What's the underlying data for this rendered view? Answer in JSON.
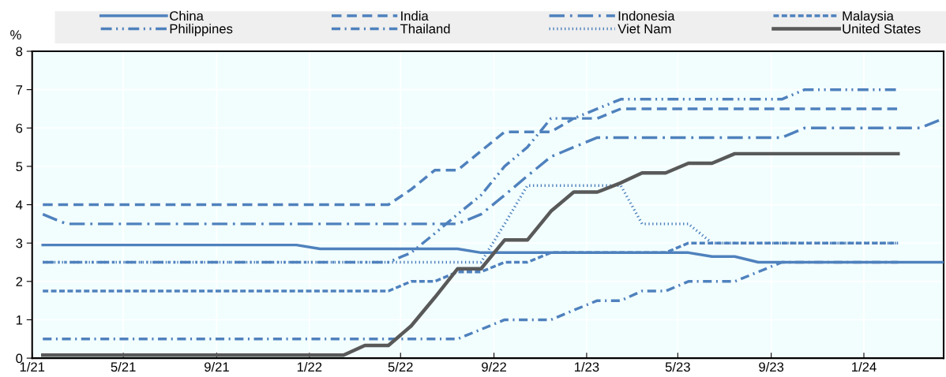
{
  "chart_data": {
    "type": "line",
    "ylabel": "%",
    "x": [
      "2021-01-15",
      "2021-02-15",
      "2021-03-15",
      "2021-04-15",
      "2021-05-15",
      "2021-06-15",
      "2021-07-15",
      "2021-08-15",
      "2021-09-15",
      "2021-10-15",
      "2021-11-15",
      "2021-12-15",
      "2022-01-15",
      "2022-02-15",
      "2022-03-15",
      "2022-04-15",
      "2022-05-15",
      "2022-06-15",
      "2022-07-15",
      "2022-08-15",
      "2022-09-15",
      "2022-10-15",
      "2022-11-15",
      "2022-12-15",
      "2023-01-15",
      "2023-02-15",
      "2023-03-15",
      "2023-04-15",
      "2023-05-15",
      "2023-06-15",
      "2023-07-15",
      "2023-08-15",
      "2023-09-15",
      "2023-10-15",
      "2023-11-15",
      "2023-12-15",
      "2024-01-15",
      "2024-02-15",
      "2024-03-15",
      "2024-04-15"
    ],
    "series": [
      {
        "name": "China",
        "color": "#4f81bd",
        "line_style": "solid",
        "values": [
          2.95,
          2.95,
          2.95,
          2.95,
          2.95,
          2.95,
          2.95,
          2.95,
          2.95,
          2.95,
          2.95,
          2.95,
          2.85,
          2.85,
          2.85,
          2.85,
          2.85,
          2.85,
          2.85,
          2.75,
          2.75,
          2.75,
          2.75,
          2.75,
          2.75,
          2.75,
          2.75,
          2.75,
          2.75,
          2.65,
          2.65,
          2.5,
          2.5,
          2.5,
          2.5,
          2.5,
          2.5,
          2.5,
          2.5,
          2.5
        ]
      },
      {
        "name": "India",
        "color": "#4f81bd",
        "line_style": "dashed",
        "values": [
          4.0,
          4.0,
          4.0,
          4.0,
          4.0,
          4.0,
          4.0,
          4.0,
          4.0,
          4.0,
          4.0,
          4.0,
          4.0,
          4.0,
          4.0,
          4.0,
          4.4,
          4.9,
          4.9,
          5.4,
          5.9,
          5.9,
          5.9,
          6.25,
          6.25,
          6.5,
          6.5,
          6.5,
          6.5,
          6.5,
          6.5,
          6.5,
          6.5,
          6.5,
          6.5,
          6.5,
          6.5,
          6.5,
          null,
          null
        ]
      },
      {
        "name": "Indonesia",
        "color": "#4f81bd",
        "line_style": "longdashdot",
        "values": [
          3.75,
          3.5,
          3.5,
          3.5,
          3.5,
          3.5,
          3.5,
          3.5,
          3.5,
          3.5,
          3.5,
          3.5,
          3.5,
          3.5,
          3.5,
          3.5,
          3.5,
          3.5,
          3.5,
          3.75,
          4.25,
          4.75,
          5.25,
          5.5,
          5.75,
          5.75,
          5.75,
          5.75,
          5.75,
          5.75,
          5.75,
          5.75,
          5.75,
          6.0,
          6.0,
          6.0,
          6.0,
          6.0,
          6.0,
          6.25
        ]
      },
      {
        "name": "Malaysia",
        "color": "#4f81bd",
        "line_style": "shortdashed",
        "values": [
          1.75,
          1.75,
          1.75,
          1.75,
          1.75,
          1.75,
          1.75,
          1.75,
          1.75,
          1.75,
          1.75,
          1.75,
          1.75,
          1.75,
          1.75,
          1.75,
          2.0,
          2.0,
          2.25,
          2.25,
          2.5,
          2.5,
          2.75,
          2.75,
          2.75,
          2.75,
          2.75,
          2.75,
          3.0,
          3.0,
          3.0,
          3.0,
          3.0,
          3.0,
          3.0,
          3.0,
          3.0,
          3.0,
          null,
          null
        ]
      },
      {
        "name": "Philippines",
        "color": "#4f81bd",
        "line_style": "dashdotdot",
        "values": [
          2.5,
          2.5,
          2.5,
          2.5,
          2.5,
          2.5,
          2.5,
          2.5,
          2.5,
          2.5,
          2.5,
          2.5,
          2.5,
          2.5,
          2.5,
          2.5,
          2.75,
          3.25,
          3.75,
          4.25,
          5.0,
          5.5,
          6.25,
          6.25,
          6.5,
          6.75,
          6.75,
          6.75,
          6.75,
          6.75,
          6.75,
          6.75,
          6.75,
          7.0,
          7.0,
          7.0,
          7.0,
          7.0,
          null,
          null
        ]
      },
      {
        "name": "Thailand",
        "color": "#4f81bd",
        "line_style": "dashdot",
        "values": [
          0.5,
          0.5,
          0.5,
          0.5,
          0.5,
          0.5,
          0.5,
          0.5,
          0.5,
          0.5,
          0.5,
          0.5,
          0.5,
          0.5,
          0.5,
          0.5,
          0.5,
          0.5,
          0.5,
          0.75,
          1.0,
          1.0,
          1.0,
          1.25,
          1.5,
          1.5,
          1.75,
          1.75,
          2.0,
          2.0,
          2.0,
          2.25,
          2.5,
          2.5,
          2.5,
          2.5,
          2.5,
          2.5,
          null,
          null
        ]
      },
      {
        "name": "Viet Nam",
        "color": "#4f81bd",
        "line_style": "dotted",
        "values": [
          2.5,
          2.5,
          2.5,
          2.5,
          2.5,
          2.5,
          2.5,
          2.5,
          2.5,
          2.5,
          2.5,
          2.5,
          2.5,
          2.5,
          2.5,
          2.5,
          2.5,
          2.5,
          2.5,
          2.5,
          3.5,
          4.5,
          4.5,
          4.5,
          4.5,
          4.5,
          3.5,
          3.5,
          3.5,
          3.0,
          3.0,
          3.0,
          3.0,
          3.0,
          3.0,
          3.0,
          3.0,
          3.0,
          null,
          null
        ]
      },
      {
        "name": "United States",
        "color": "#595959",
        "line_style": "solid",
        "values": [
          0.08,
          0.08,
          0.08,
          0.08,
          0.08,
          0.08,
          0.08,
          0.08,
          0.08,
          0.08,
          0.08,
          0.08,
          0.08,
          0.08,
          0.33,
          0.33,
          0.84,
          1.58,
          2.33,
          2.33,
          3.08,
          3.08,
          3.83,
          4.33,
          4.33,
          4.57,
          4.83,
          4.83,
          5.08,
          5.08,
          5.33,
          5.33,
          5.33,
          5.33,
          5.33,
          5.33,
          5.33,
          5.33,
          null,
          null
        ]
      }
    ],
    "xlim": [
      "2021-01-01",
      "2024-04-15"
    ],
    "xticks": [
      {
        "value": "2021-01-01",
        "label": "1/21"
      },
      {
        "value": "2021-05-01",
        "label": "5/21"
      },
      {
        "value": "2021-09-01",
        "label": "9/21"
      },
      {
        "value": "2022-01-01",
        "label": "1/22"
      },
      {
        "value": "2022-05-01",
        "label": "5/22"
      },
      {
        "value": "2022-09-01",
        "label": "9/22"
      },
      {
        "value": "2023-01-01",
        "label": "1/23"
      },
      {
        "value": "2023-05-01",
        "label": "5/23"
      },
      {
        "value": "2023-09-01",
        "label": "9/23"
      },
      {
        "value": "2024-01-01",
        "label": "1/24"
      }
    ],
    "ylim": [
      0,
      8
    ],
    "yticks": [
      0,
      1,
      2,
      3,
      4,
      5,
      6,
      7,
      8
    ],
    "grid": true,
    "legend": "top",
    "marker": "none"
  }
}
